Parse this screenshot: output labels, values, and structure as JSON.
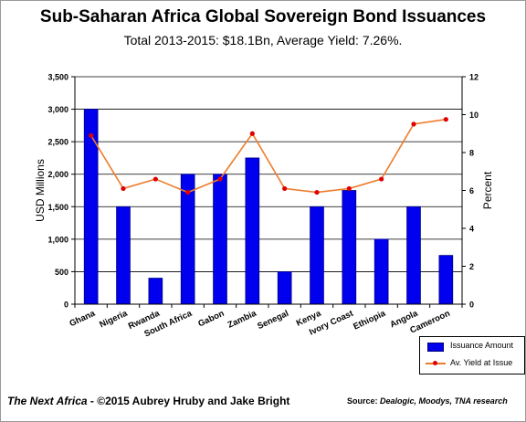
{
  "title": "Sub-Saharan Africa Global Sovereign Bond Issuances",
  "subtitle": "Total 2013-2015:  $18.1Bn, Average Yield: 7.26%.",
  "footer": {
    "left_italic": "The Next Africa",
    "left_rest": " - ©2015 Aubrey Hruby and Jake Bright",
    "right_label": "Source: ",
    "right_sources": "Dealogic, Moodys, TNA research"
  },
  "colors": {
    "bar": "#0000ee",
    "bar_border": "#000080",
    "line": "#ee7c2b",
    "marker": "#e00000"
  },
  "chart_data": {
    "type": "bar",
    "categories": [
      "Ghana",
      "Nigeria",
      "Rwanda",
      "South Africa",
      "Gabon",
      "Zambia",
      "Senegal",
      "Kenya",
      "Ivory Coast",
      "Ethiopia",
      "Angola",
      "Cameroon"
    ],
    "series": [
      {
        "name": "Issuance Amount",
        "type": "bar",
        "axis": "left",
        "values": [
          3000,
          1500,
          400,
          2000,
          2000,
          2250,
          500,
          1500,
          1750,
          1000,
          1500,
          750
        ]
      },
      {
        "name": "Av. Yield at Issue",
        "type": "line",
        "axis": "right",
        "values": [
          8.9,
          6.1,
          6.6,
          5.9,
          6.6,
          9.0,
          6.1,
          5.9,
          6.1,
          6.6,
          9.5,
          9.75
        ]
      }
    ],
    "ylabel": "USD Millions",
    "y2label": "Percent",
    "ylim": [
      0,
      3500
    ],
    "y2lim": [
      0,
      12
    ],
    "yticks": [
      "0",
      "500",
      "1,000",
      "1,500",
      "2,000",
      "2,500",
      "3,000",
      "3,500"
    ],
    "y2ticks": [
      "0",
      "2",
      "4",
      "6",
      "8",
      "10",
      "12"
    ],
    "grid": "horizontal",
    "legend": "bottom-right"
  }
}
